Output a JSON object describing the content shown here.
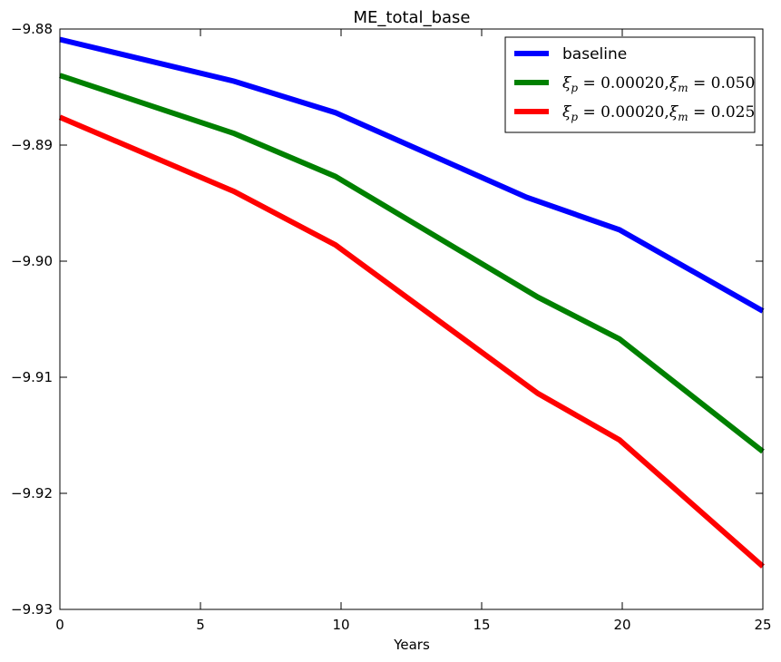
{
  "chart_data": {
    "type": "line",
    "title": "ME_total_base",
    "xlabel": "Years",
    "ylabel": "",
    "xlim": [
      0,
      25
    ],
    "ylim": [
      -9.93,
      -9.88
    ],
    "xticks": [
      0,
      5,
      10,
      15,
      20,
      25
    ],
    "xtick_labels": [
      "0",
      "5",
      "10",
      "15",
      "20",
      "25"
    ],
    "yticks": [
      -9.88,
      -9.89,
      -9.9,
      -9.91,
      -9.92,
      -9.93
    ],
    "ytick_labels": [
      "−9.88",
      "−9.89",
      "−9.90",
      "−9.91",
      "−9.92",
      "−9.93"
    ],
    "grid": false,
    "legend_position": "top-right",
    "series": [
      {
        "name": "baseline",
        "color": "#0000ff",
        "x": [
          0,
          6.2,
          9.8,
          16.6,
          19.9,
          25
        ],
        "y": [
          -9.8809,
          -9.8845,
          -9.8872,
          -9.8945,
          -9.8973,
          -9.9043
        ]
      },
      {
        "name": "ξp = 0.00020, ξm = 0.050",
        "color": "#008000",
        "x": [
          0,
          6.2,
          9.8,
          17.0,
          19.9,
          25
        ],
        "y": [
          -9.884,
          -9.889,
          -9.8927,
          -9.9031,
          -9.9067,
          -9.9164
        ]
      },
      {
        "name": "ξp = 0.00020, ξm = 0.025",
        "color": "#ff0000",
        "x": [
          0,
          6.2,
          9.8,
          17.0,
          19.9,
          25
        ],
        "y": [
          -9.8876,
          -9.894,
          -9.8986,
          -9.9114,
          -9.9154,
          -9.9263
        ]
      }
    ],
    "legend_entries": [
      {
        "type": "text",
        "label": "baseline"
      },
      {
        "type": "math",
        "sym1": "ξ",
        "sub1": "p",
        "val1": " = 0.00020,",
        "sym2": "ξ",
        "sub2": "m",
        "val2": " = 0.050"
      },
      {
        "type": "math",
        "sym1": "ξ",
        "sub1": "p",
        "val1": " = 0.00020,",
        "sym2": "ξ",
        "sub2": "m",
        "val2": " = 0.025"
      }
    ]
  }
}
